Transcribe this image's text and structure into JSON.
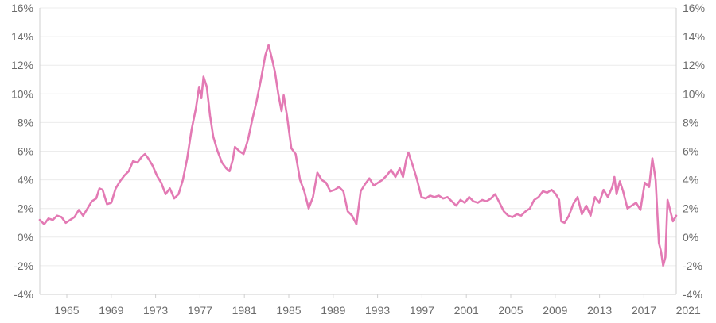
{
  "chart_data": {
    "type": "line",
    "title": "",
    "xlabel": "",
    "ylabel": "",
    "ylim": [
      -4,
      16
    ],
    "y_ticks": [
      -4,
      -2,
      0,
      2,
      4,
      6,
      8,
      10,
      12,
      14,
      16
    ],
    "y_tick_suffix": "%",
    "y_axis_sides": [
      "left",
      "right"
    ],
    "xlim": [
      1963.0,
      2021.7
    ],
    "x_ticks": [
      "1965",
      "1969",
      "1973",
      "1977",
      "1981",
      "1985",
      "1989",
      "1993",
      "1997",
      "2001",
      "2005",
      "2009",
      "2013",
      "2017",
      "2021"
    ],
    "grid": "horizontal",
    "legend": "none",
    "series": [
      {
        "color": "#e37ab4",
        "points": [
          [
            1963.0,
            1.2
          ],
          [
            1963.4,
            0.9
          ],
          [
            1963.8,
            1.3
          ],
          [
            1964.2,
            1.2
          ],
          [
            1964.6,
            1.5
          ],
          [
            1965.0,
            1.4
          ],
          [
            1965.4,
            1.0
          ],
          [
            1965.8,
            1.2
          ],
          [
            1966.2,
            1.4
          ],
          [
            1966.6,
            1.9
          ],
          [
            1967.0,
            1.5
          ],
          [
            1967.4,
            2.0
          ],
          [
            1967.8,
            2.5
          ],
          [
            1968.2,
            2.7
          ],
          [
            1968.5,
            3.4
          ],
          [
            1968.8,
            3.3
          ],
          [
            1969.2,
            2.3
          ],
          [
            1969.6,
            2.4
          ],
          [
            1970.0,
            3.4
          ],
          [
            1970.4,
            3.9
          ],
          [
            1970.8,
            4.3
          ],
          [
            1971.2,
            4.6
          ],
          [
            1971.6,
            5.3
          ],
          [
            1972.0,
            5.2
          ],
          [
            1972.4,
            5.6
          ],
          [
            1972.7,
            5.8
          ],
          [
            1973.0,
            5.5
          ],
          [
            1973.4,
            5.0
          ],
          [
            1973.8,
            4.3
          ],
          [
            1974.2,
            3.8
          ],
          [
            1974.6,
            3.0
          ],
          [
            1975.0,
            3.4
          ],
          [
            1975.4,
            2.7
          ],
          [
            1975.8,
            3.0
          ],
          [
            1976.2,
            4.0
          ],
          [
            1976.6,
            5.5
          ],
          [
            1977.0,
            7.5
          ],
          [
            1977.4,
            9.0
          ],
          [
            1977.7,
            10.5
          ],
          [
            1977.9,
            9.7
          ],
          [
            1978.1,
            11.2
          ],
          [
            1978.4,
            10.5
          ],
          [
            1978.7,
            8.5
          ],
          [
            1979.0,
            7.0
          ],
          [
            1979.4,
            6.0
          ],
          [
            1979.8,
            5.2
          ],
          [
            1980.2,
            4.8
          ],
          [
            1980.5,
            4.6
          ],
          [
            1980.8,
            5.4
          ],
          [
            1981.0,
            6.3
          ],
          [
            1981.4,
            6.0
          ],
          [
            1981.8,
            5.8
          ],
          [
            1982.2,
            6.8
          ],
          [
            1982.6,
            8.2
          ],
          [
            1983.0,
            9.5
          ],
          [
            1983.4,
            11.0
          ],
          [
            1983.8,
            12.7
          ],
          [
            1984.1,
            13.4
          ],
          [
            1984.4,
            12.5
          ],
          [
            1984.7,
            11.5
          ],
          [
            1985.0,
            10.0
          ],
          [
            1985.3,
            8.8
          ],
          [
            1985.5,
            9.9
          ],
          [
            1985.8,
            8.5
          ],
          [
            1986.2,
            6.2
          ],
          [
            1986.6,
            5.8
          ],
          [
            1987.0,
            4.0
          ],
          [
            1987.4,
            3.2
          ],
          [
            1987.8,
            2.0
          ],
          [
            1988.2,
            2.8
          ],
          [
            1988.6,
            4.5
          ],
          [
            1989.0,
            4.0
          ],
          [
            1989.4,
            3.8
          ],
          [
            1989.8,
            3.2
          ],
          [
            1990.2,
            3.3
          ],
          [
            1990.6,
            3.5
          ],
          [
            1991.0,
            3.2
          ],
          [
            1991.4,
            1.8
          ],
          [
            1991.8,
            1.5
          ],
          [
            1992.2,
            0.9
          ],
          [
            1992.6,
            3.2
          ],
          [
            1993.0,
            3.7
          ],
          [
            1993.4,
            4.1
          ],
          [
            1993.8,
            3.6
          ],
          [
            1994.2,
            3.8
          ],
          [
            1994.6,
            4.0
          ],
          [
            1995.0,
            4.3
          ],
          [
            1995.4,
            4.7
          ],
          [
            1995.8,
            4.2
          ],
          [
            1996.2,
            4.8
          ],
          [
            1996.5,
            4.2
          ],
          [
            1996.8,
            5.4
          ],
          [
            1997.0,
            5.9
          ],
          [
            1997.4,
            5.0
          ],
          [
            1997.8,
            4.0
          ],
          [
            1998.2,
            2.8
          ],
          [
            1998.6,
            2.7
          ],
          [
            1999.0,
            2.9
          ],
          [
            1999.4,
            2.8
          ],
          [
            1999.8,
            2.9
          ],
          [
            2000.2,
            2.7
          ],
          [
            2000.6,
            2.8
          ],
          [
            2001.0,
            2.5
          ],
          [
            2001.4,
            2.2
          ],
          [
            2001.8,
            2.6
          ],
          [
            2002.2,
            2.4
          ],
          [
            2002.6,
            2.8
          ],
          [
            2003.0,
            2.5
          ],
          [
            2003.4,
            2.4
          ],
          [
            2003.8,
            2.6
          ],
          [
            2004.2,
            2.5
          ],
          [
            2004.6,
            2.7
          ],
          [
            2005.0,
            3.0
          ],
          [
            2005.4,
            2.4
          ],
          [
            2005.8,
            1.8
          ],
          [
            2006.2,
            1.5
          ],
          [
            2006.6,
            1.4
          ],
          [
            2007.0,
            1.6
          ],
          [
            2007.4,
            1.5
          ],
          [
            2007.8,
            1.8
          ],
          [
            2008.2,
            2.0
          ],
          [
            2008.6,
            2.6
          ],
          [
            2009.0,
            2.8
          ],
          [
            2009.4,
            3.2
          ],
          [
            2009.8,
            3.1
          ],
          [
            2010.2,
            3.3
          ],
          [
            2010.6,
            3.0
          ],
          [
            2010.9,
            2.6
          ],
          [
            2011.1,
            1.1
          ],
          [
            2011.4,
            1.0
          ],
          [
            2011.8,
            1.5
          ],
          [
            2012.2,
            2.3
          ],
          [
            2012.6,
            2.8
          ],
          [
            2013.0,
            1.6
          ],
          [
            2013.4,
            2.2
          ],
          [
            2013.8,
            1.5
          ],
          [
            2014.2,
            2.8
          ],
          [
            2014.6,
            2.4
          ],
          [
            2015.0,
            3.3
          ],
          [
            2015.4,
            2.8
          ],
          [
            2015.8,
            3.5
          ],
          [
            2016.0,
            4.2
          ],
          [
            2016.2,
            3.0
          ],
          [
            2016.5,
            3.9
          ],
          [
            2016.8,
            3.2
          ],
          [
            2017.2,
            2.0
          ],
          [
            2017.6,
            2.2
          ],
          [
            2018.0,
            2.4
          ],
          [
            2018.4,
            1.9
          ],
          [
            2018.8,
            3.8
          ],
          [
            2019.2,
            3.5
          ],
          [
            2019.5,
            5.5
          ],
          [
            2019.8,
            4.0
          ],
          [
            2020.1,
            -0.4
          ],
          [
            2020.3,
            -1.0
          ],
          [
            2020.5,
            -2.0
          ],
          [
            2020.7,
            -1.4
          ],
          [
            2020.9,
            2.6
          ],
          [
            2021.1,
            2.0
          ],
          [
            2021.4,
            1.1
          ],
          [
            2021.7,
            1.5
          ]
        ]
      }
    ]
  }
}
